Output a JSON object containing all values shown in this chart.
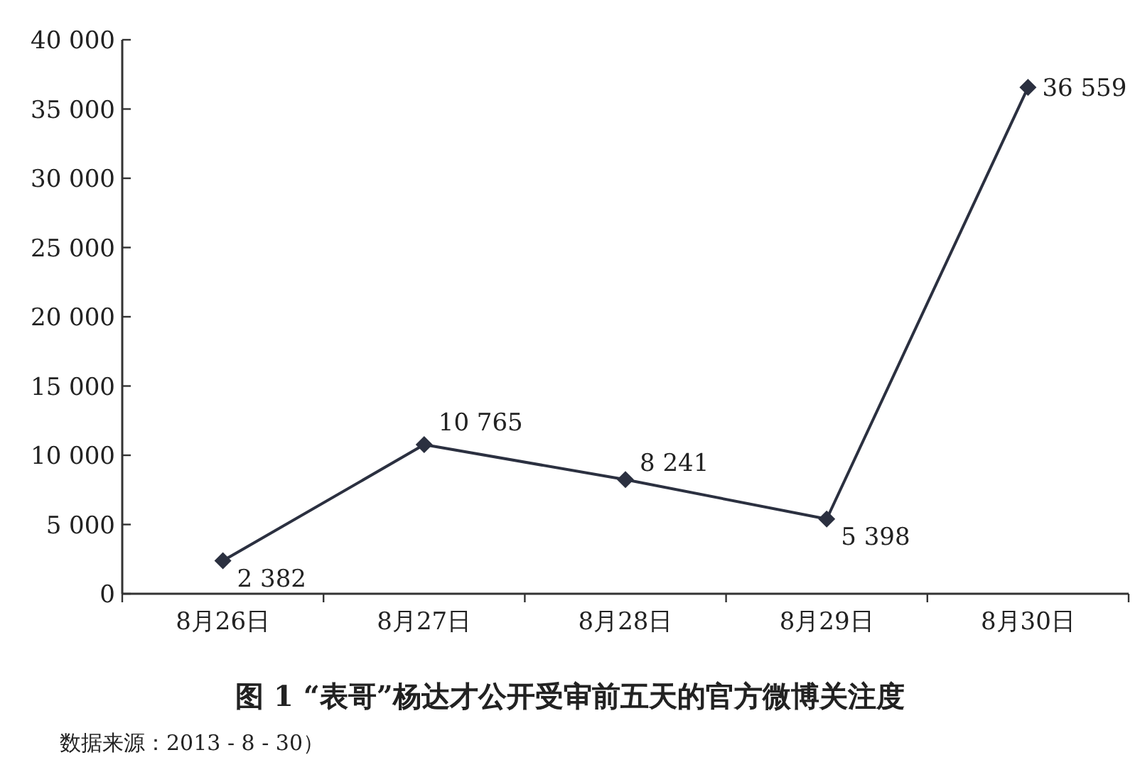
{
  "chart_data": {
    "type": "line",
    "title": "图 1  “表哥”杨达才公开受审前五天的官方微博关注度",
    "categories": [
      "8月26日",
      "8月27日",
      "8月28日",
      "8月29日",
      "8月30日"
    ],
    "values": [
      2382,
      10765,
      8241,
      5398,
      36559
    ],
    "value_labels": [
      "2 382",
      "10 765",
      "8 241",
      "5 398",
      "36 559"
    ],
    "color": "#2b3040",
    "marker": "diamond",
    "line_style": "solid",
    "ylim": [
      0,
      40000
    ],
    "yticks": [
      0,
      {
        "value": 5000,
        "label": "5 000"
      },
      {
        "value": 10000,
        "label": "10 000"
      },
      {
        "value": 15000,
        "label": "15 000"
      },
      {
        "value": 20000,
        "label": "20 000"
      },
      {
        "value": 25000,
        "label": "25 000"
      },
      {
        "value": 30000,
        "label": "30 000"
      },
      {
        "value": 35000,
        "label": "35 000"
      },
      {
        "value": 40000,
        "label": "40 000"
      }
    ],
    "annotations": [
      "数据来源：2013 - 8 - 30）"
    ]
  }
}
